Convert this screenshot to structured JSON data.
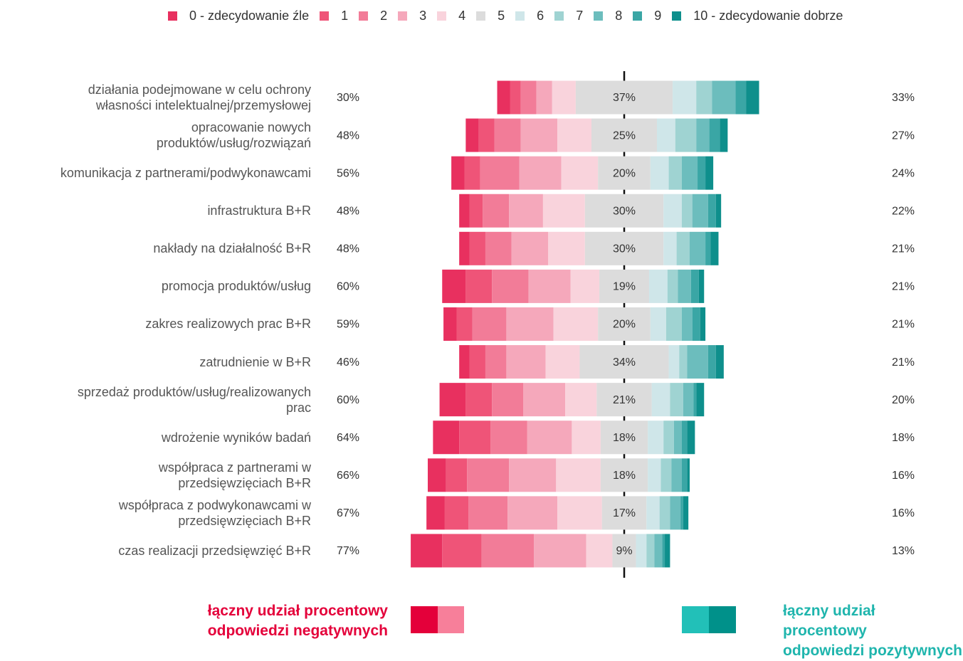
{
  "chart_data": {
    "type": "diverging_bar",
    "categories": [
      "działania podejmowane w celu ochrony\nwłasności intelektualnej/przemysłowej",
      "opracowanie nowych\nproduktów/usług/rozwiązań",
      "komunikacja z partnerami/podwykonawcami",
      "infrastruktura B+R",
      "nakłady na działalność B+R",
      "promocja produktów/usług",
      "zakres realizowych prac B+R",
      "zatrudnienie w B+R",
      "sprzedaż produktów/usług/realizowanych\nprac",
      "wdrożenie wyników badań",
      "współpraca z partnerami w\nprzedsięwzięciach B+R",
      "współpraca z podwykonawcami w\nprzedsięwzięciach B+R",
      "czas realizacji przedsięwzięć B+R"
    ],
    "series": [
      {
        "name": "0 - zdecydowanie źle",
        "color": "#e8305f",
        "values": [
          5,
          5,
          5,
          4,
          4,
          9,
          5,
          4,
          10,
          10,
          7,
          7,
          12
        ]
      },
      {
        "name": "1",
        "color": "#ef5478",
        "values": [
          4,
          6,
          6,
          5,
          6,
          10,
          6,
          6,
          10,
          12,
          8,
          9,
          15
        ]
      },
      {
        "name": "2",
        "color": "#f27c98",
        "values": [
          6,
          10,
          15,
          10,
          10,
          14,
          13,
          8,
          12,
          14,
          16,
          15,
          20
        ]
      },
      {
        "name": "3",
        "color": "#f5a8bb",
        "values": [
          6,
          14,
          16,
          13,
          14,
          16,
          18,
          15,
          16,
          17,
          18,
          19,
          20
        ]
      },
      {
        "name": "4",
        "color": "#f9d3dc",
        "values": [
          9,
          13,
          14,
          16,
          14,
          11,
          17,
          13,
          12,
          11,
          17,
          17,
          10
        ]
      },
      {
        "name": "5",
        "color": "#dcdcdc",
        "values": [
          37,
          25,
          20,
          30,
          30,
          19,
          20,
          34,
          21,
          18,
          18,
          17,
          9
        ],
        "value_labels": [
          "37%",
          "25%",
          "20%",
          "30%",
          "30%",
          "19%",
          "20%",
          "34%",
          "21%",
          "18%",
          "18%",
          "17%",
          "9%"
        ]
      },
      {
        "name": "6",
        "color": "#cfe6e9",
        "values": [
          9,
          7,
          7,
          7,
          5,
          7,
          6,
          4,
          7,
          6,
          5,
          5,
          4
        ]
      },
      {
        "name": "7",
        "color": "#9fd3d2",
        "values": [
          6,
          8,
          5,
          4,
          5,
          4,
          6,
          3,
          5,
          4,
          4,
          4,
          3
        ]
      },
      {
        "name": "8",
        "color": "#6cbdbd",
        "values": [
          9,
          5,
          6,
          6,
          6,
          5,
          4,
          8,
          4,
          3,
          4,
          4,
          3
        ]
      },
      {
        "name": "9",
        "color": "#3aa6a5",
        "values": [
          4,
          4,
          3,
          3,
          2,
          3,
          3,
          3,
          1,
          2,
          2,
          1,
          1
        ]
      },
      {
        "name": "10 - zdecydowanie dobrze",
        "color": "#0e8f8c",
        "values": [
          5,
          3,
          3,
          2,
          3,
          2,
          2,
          3,
          3,
          3,
          1,
          2,
          2
        ]
      }
    ],
    "negative_share_labels": [
      "30%",
      "48%",
      "56%",
      "48%",
      "48%",
      "60%",
      "59%",
      "46%",
      "60%",
      "64%",
      "66%",
      "67%",
      "77%"
    ],
    "positive_share_labels": [
      "33%",
      "27%",
      "24%",
      "22%",
      "21%",
      "21%",
      "21%",
      "21%",
      "20%",
      "18%",
      "16%",
      "16%",
      "13%"
    ],
    "neutral_index": 5
  },
  "footer": {
    "negative": {
      "text": "łączny udział procentowy\nodpowiedzi negatywnych",
      "colors": [
        "#e4003a",
        "#f77f9a"
      ]
    },
    "positive": {
      "text": "łączny udział procentowy\nodpowiedzi pozytywnych",
      "colors": [
        "#22c0b8",
        "#00918a"
      ]
    }
  }
}
